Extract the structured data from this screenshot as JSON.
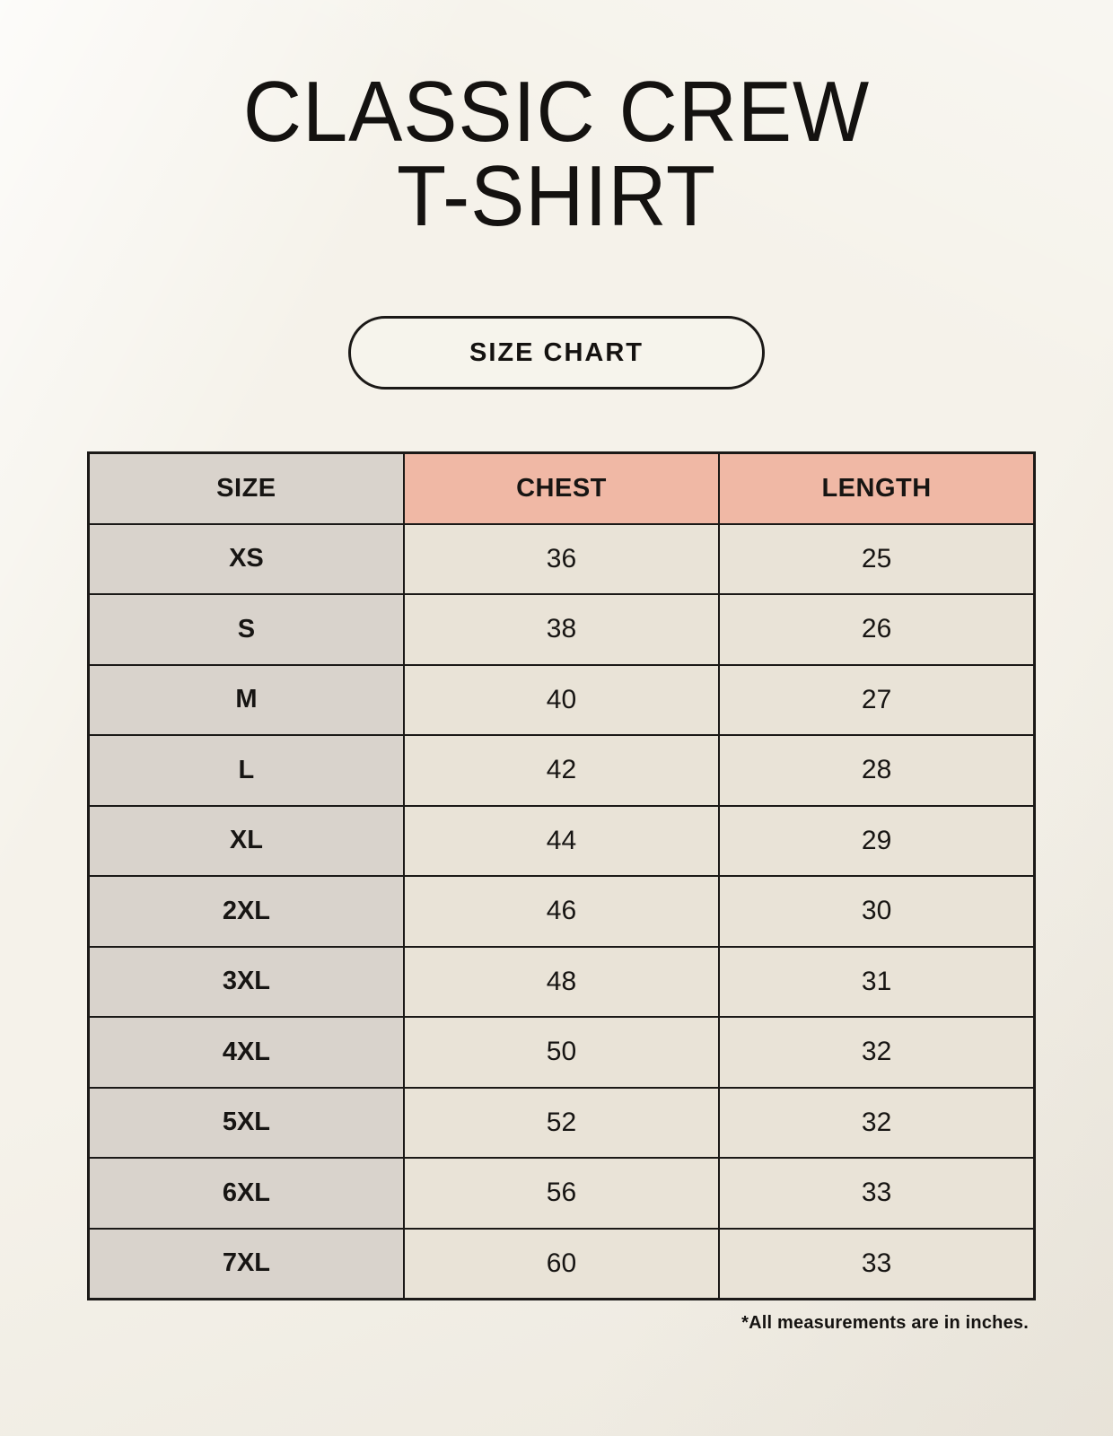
{
  "header": {
    "title_line1": "CLASSIC CREW",
    "title_line2": "T-SHIRT",
    "button_label": "SIZE CHART"
  },
  "table": {
    "columns": [
      "SIZE",
      "CHEST",
      "LENGTH"
    ],
    "rows": [
      {
        "size": "XS",
        "chest": "36",
        "length": "25"
      },
      {
        "size": "S",
        "chest": "38",
        "length": "26"
      },
      {
        "size": "M",
        "chest": "40",
        "length": "27"
      },
      {
        "size": "L",
        "chest": "42",
        "length": "28"
      },
      {
        "size": "XL",
        "chest": "44",
        "length": "29"
      },
      {
        "size": "2XL",
        "chest": "46",
        "length": "30"
      },
      {
        "size": "3XL",
        "chest": "48",
        "length": "31"
      },
      {
        "size": "4XL",
        "chest": "50",
        "length": "32"
      },
      {
        "size": "5XL",
        "chest": "52",
        "length": "32"
      },
      {
        "size": "6XL",
        "chest": "56",
        "length": "33"
      },
      {
        "size": "7XL",
        "chest": "60",
        "length": "33"
      }
    ]
  },
  "footnote": "*All measurements are in inches.",
  "colors": {
    "background": "#f5f2ea",
    "accent_header": "#f0b8a5",
    "size_column": "#d9d3cc",
    "value_cell": "#e9e3d7",
    "border": "#1b1917",
    "text": "#141210"
  }
}
